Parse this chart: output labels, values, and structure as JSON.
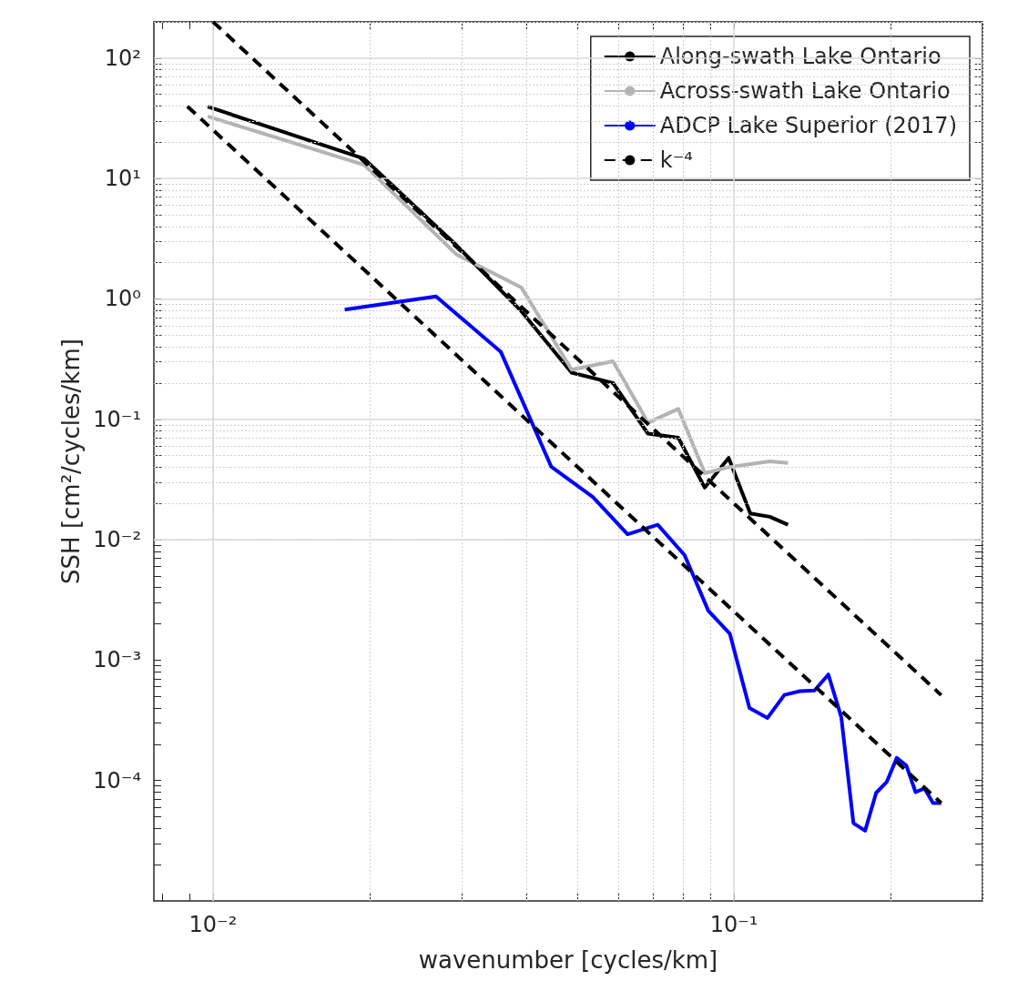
{
  "chart_data": {
    "type": "line",
    "xlabel": "wavenumber [cycles/km]",
    "ylabel": "SSH [cm²/cycles/km]",
    "log": "xy",
    "grid": true,
    "legend": "top right",
    "marker": "none",
    "xlim": [
      0.0077,
      0.3
    ],
    "ylim": [
      1e-05,
      200
    ],
    "xticks": [
      {
        "value": 0.008,
        "label": null
      },
      {
        "value": 0.009,
        "label": null
      },
      {
        "value": 0.01,
        "label": "10⁻²"
      },
      {
        "value": 0.02,
        "label": null
      },
      {
        "value": 0.03,
        "label": null
      },
      {
        "value": 0.04,
        "label": null
      },
      {
        "value": 0.05,
        "label": null
      },
      {
        "value": 0.06,
        "label": null
      },
      {
        "value": 0.07,
        "label": null
      },
      {
        "value": 0.08,
        "label": null
      },
      {
        "value": 0.09,
        "label": null
      },
      {
        "value": 0.1,
        "label": "10⁻¹"
      },
      {
        "value": 0.2,
        "label": null
      },
      {
        "value": 0.3,
        "label": null
      }
    ],
    "yticks": [
      {
        "value": 2e-05,
        "label": null
      },
      {
        "value": 3e-05,
        "label": null
      },
      {
        "value": 4e-05,
        "label": null
      },
      {
        "value": 5e-05,
        "label": null
      },
      {
        "value": 6e-05,
        "label": null
      },
      {
        "value": 7e-05,
        "label": null
      },
      {
        "value": 8e-05,
        "label": null
      },
      {
        "value": 9e-05,
        "label": null
      },
      {
        "value": 0.0001,
        "label": "10⁻⁴"
      },
      {
        "value": 0.0002,
        "label": null
      },
      {
        "value": 0.0003,
        "label": null
      },
      {
        "value": 0.0004,
        "label": null
      },
      {
        "value": 0.0005,
        "label": null
      },
      {
        "value": 0.0006,
        "label": null
      },
      {
        "value": 0.0007,
        "label": null
      },
      {
        "value": 0.0008,
        "label": null
      },
      {
        "value": 0.0009,
        "label": null
      },
      {
        "value": 0.001,
        "label": "10⁻³"
      },
      {
        "value": 0.002,
        "label": null
      },
      {
        "value": 0.003,
        "label": null
      },
      {
        "value": 0.004,
        "label": null
      },
      {
        "value": 0.005,
        "label": null
      },
      {
        "value": 0.006,
        "label": null
      },
      {
        "value": 0.007,
        "label": null
      },
      {
        "value": 0.008,
        "label": null
      },
      {
        "value": 0.009,
        "label": null
      },
      {
        "value": 0.01,
        "label": "10⁻²"
      },
      {
        "value": 0.02,
        "label": null
      },
      {
        "value": 0.03,
        "label": null
      },
      {
        "value": 0.04,
        "label": null
      },
      {
        "value": 0.05,
        "label": null
      },
      {
        "value": 0.06,
        "label": null
      },
      {
        "value": 0.07,
        "label": null
      },
      {
        "value": 0.08,
        "label": null
      },
      {
        "value": 0.09,
        "label": null
      },
      {
        "value": 0.1,
        "label": "10⁻¹"
      },
      {
        "value": 0.2,
        "label": null
      },
      {
        "value": 0.3,
        "label": null
      },
      {
        "value": 0.4,
        "label": null
      },
      {
        "value": 0.5,
        "label": null
      },
      {
        "value": 0.6,
        "label": null
      },
      {
        "value": 0.7,
        "label": null
      },
      {
        "value": 0.8,
        "label": null
      },
      {
        "value": 0.9,
        "label": null
      },
      {
        "value": 1,
        "label": "10⁰"
      },
      {
        "value": 2,
        "label": null
      },
      {
        "value": 3,
        "label": null
      },
      {
        "value": 4,
        "label": null
      },
      {
        "value": 5,
        "label": null
      },
      {
        "value": 6,
        "label": null
      },
      {
        "value": 7,
        "label": null
      },
      {
        "value": 8,
        "label": null
      },
      {
        "value": 9,
        "label": null
      },
      {
        "value": 10,
        "label": "10¹"
      },
      {
        "value": 20,
        "label": null
      },
      {
        "value": 30,
        "label": null
      },
      {
        "value": 40,
        "label": null
      },
      {
        "value": 50,
        "label": null
      },
      {
        "value": 60,
        "label": null
      },
      {
        "value": 70,
        "label": null
      },
      {
        "value": 80,
        "label": null
      },
      {
        "value": 90,
        "label": null
      },
      {
        "value": 100,
        "label": "10²"
      },
      {
        "value": 200,
        "label": null
      }
    ],
    "series": [
      {
        "name": "Along-swath Lake Ontario",
        "color": "#000000",
        "line_style": "solid",
        "x": [
          0.00977,
          0.0195,
          0.0293,
          0.0391,
          0.0488,
          0.0586,
          0.0684,
          0.0782,
          0.0879,
          0.0977,
          0.1075,
          0.1172,
          0.127
        ],
        "values": [
          39.5,
          14.6,
          2.8,
          0.787,
          0.244,
          0.2,
          0.076,
          0.0703,
          0.0271,
          0.0478,
          0.0165,
          0.0155,
          0.0133
        ]
      },
      {
        "name": "Across-swath Lake Ontario",
        "color": "#b3b3b3",
        "line_style": "solid",
        "x": [
          0.00977,
          0.0195,
          0.0293,
          0.0391,
          0.0488,
          0.0586,
          0.0684,
          0.0782,
          0.0879,
          0.0977,
          0.1075,
          0.1172,
          0.127
        ],
        "values": [
          32.8,
          13.0,
          2.35,
          1.24,
          0.258,
          0.303,
          0.094,
          0.122,
          0.0357,
          0.04,
          0.0425,
          0.0448,
          0.0433
        ]
      },
      {
        "name": "ADCP Lake Superior (2017)",
        "color": "#0000ff",
        "line_style": "solid",
        "x": [
          0.0179,
          0.0268,
          0.0357,
          0.0446,
          0.0536,
          0.0625,
          0.0714,
          0.0804,
          0.0893,
          0.0982,
          0.1071,
          0.116,
          0.125,
          0.1339,
          0.1428,
          0.1518,
          0.1607,
          0.1696,
          0.1786,
          0.1875,
          0.1964,
          0.2054,
          0.2143,
          0.2232,
          0.2321,
          0.2411,
          0.25
        ],
        "values": [
          0.815,
          1.05,
          0.362,
          0.0404,
          0.0226,
          0.0111,
          0.0133,
          0.00745,
          0.00257,
          0.00166,
          0.0004,
          0.000331,
          0.000514,
          0.000552,
          0.000559,
          0.000759,
          0.000337,
          4.42e-05,
          3.83e-05,
          7.9e-05,
          9.7e-05,
          0.000154,
          0.000133,
          8e-05,
          8.6e-05,
          6.5e-05,
          6.5e-05
        ]
      },
      {
        "name": "k⁻⁴",
        "color": "#000000",
        "line_style": "dashed",
        "x": [
          0.01,
          0.25
        ],
        "values": [
          200,
          0.000512
        ]
      },
      {
        "color": "#000000",
        "line_style": "dashed",
        "x": [
          0.00893,
          0.25
        ],
        "values": [
          39.7,
          6.5e-05
        ]
      }
    ]
  }
}
